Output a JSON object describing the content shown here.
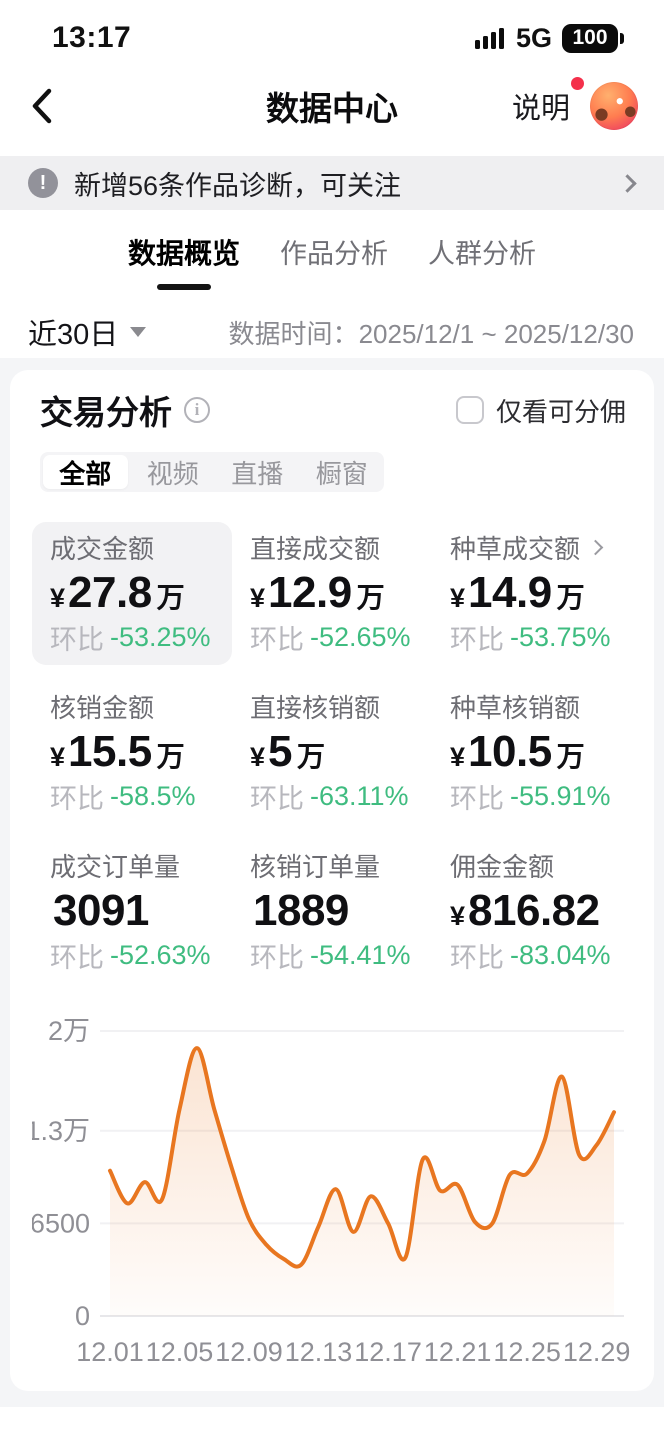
{
  "status_bar": {
    "time": "13:17",
    "network": "5G",
    "battery_level": "100"
  },
  "header": {
    "title": "数据中心",
    "help_label": "说明"
  },
  "notice": {
    "text": "新增56条作品诊断，可关注"
  },
  "tabs": [
    {
      "label": "数据概览",
      "active": true
    },
    {
      "label": "作品分析",
      "active": false
    },
    {
      "label": "人群分析",
      "active": false
    }
  ],
  "filter": {
    "range_label": "近30日",
    "date_prefix": "数据时间：",
    "date_range": "2025/12/1 ~ 2025/12/30"
  },
  "trade_card": {
    "title": "交易分析",
    "commission_checkbox_label": "仅看可分佣",
    "checkbox_checked": false,
    "segments": [
      {
        "label": "全部",
        "active": true
      },
      {
        "label": "视频",
        "active": false
      },
      {
        "label": "直播",
        "active": false
      },
      {
        "label": "橱窗",
        "active": false
      }
    ],
    "metrics": [
      {
        "label": "成交金额",
        "prefix": "¥",
        "value": "27.8",
        "unit": "万",
        "trend_label": "环比",
        "trend": "-53.25%",
        "highlighted": true
      },
      {
        "label": "直接成交额",
        "prefix": "¥",
        "value": "12.9",
        "unit": "万",
        "trend_label": "环比",
        "trend": "-52.65%",
        "highlighted": false
      },
      {
        "label": "种草成交额",
        "prefix": "¥",
        "value": "14.9",
        "unit": "万",
        "trend_label": "环比",
        "trend": "-53.75%",
        "highlighted": false,
        "has_chevron": true
      },
      {
        "label": "核销金额",
        "prefix": "¥",
        "value": "15.5",
        "unit": "万",
        "trend_label": "环比",
        "trend": "-58.5%",
        "highlighted": false
      },
      {
        "label": "直接核销额",
        "prefix": "¥",
        "value": "5",
        "unit": "万",
        "trend_label": "环比",
        "trend": "-63.11%",
        "highlighted": false
      },
      {
        "label": "种草核销额",
        "prefix": "¥",
        "value": "10.5",
        "unit": "万",
        "trend_label": "环比",
        "trend": "-55.91%",
        "highlighted": false
      },
      {
        "label": "成交订单量",
        "prefix": "",
        "value": "3091",
        "unit": "",
        "trend_label": "环比",
        "trend": "-52.63%",
        "highlighted": false
      },
      {
        "label": "核销订单量",
        "prefix": "",
        "value": "1889",
        "unit": "",
        "trend_label": "环比",
        "trend": "-54.41%",
        "highlighted": false
      },
      {
        "label": "佣金金额",
        "prefix": "¥",
        "value": "816.82",
        "unit": "",
        "trend_label": "环比",
        "trend": "-83.04%",
        "highlighted": false
      }
    ]
  },
  "chart_data": {
    "type": "area",
    "title": "",
    "x": [
      "12.01",
      "12.02",
      "12.03",
      "12.04",
      "12.05",
      "12.06",
      "12.07",
      "12.08",
      "12.09",
      "12.10",
      "12.11",
      "12.12",
      "12.13",
      "12.14",
      "12.15",
      "12.16",
      "12.17",
      "12.18",
      "12.19",
      "12.20",
      "12.21",
      "12.22",
      "12.23",
      "12.24",
      "12.25",
      "12.26",
      "12.27",
      "12.28",
      "12.29",
      "12.30"
    ],
    "values": [
      10200,
      7900,
      9400,
      8200,
      14500,
      18800,
      14500,
      10400,
      6800,
      5000,
      4000,
      3600,
      6300,
      8900,
      5900,
      8400,
      6500,
      4100,
      11000,
      8800,
      9200,
      6600,
      6500,
      9900,
      10000,
      12300,
      16800,
      11300,
      12000,
      14300
    ],
    "ylim": [
      0,
      20000
    ],
    "ytick_values": [
      0,
      6500,
      13000,
      20000
    ],
    "ytick_labels": [
      "0",
      "6500",
      "1.3万",
      "2万"
    ],
    "xtick_every": 4,
    "xtick_labels": [
      "12.01",
      "12.05",
      "12.09",
      "12.13",
      "12.17",
      "12.21",
      "12.25",
      "12.29"
    ],
    "line_color": "#e87620",
    "smooth": true,
    "grid": true,
    "legend": "none"
  },
  "colors": {
    "accent_orange": "#e87620",
    "trend_green": "#3fbc80",
    "highlight_bg": "#f2f2f4",
    "notice_bg": "#efeff1"
  }
}
